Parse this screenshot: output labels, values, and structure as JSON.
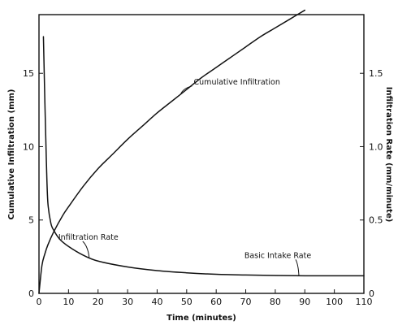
{
  "chart_data": {
    "type": "line",
    "title": "",
    "xlabel": "Time (minutes)",
    "ylabel_left": "Cumulative Infiltration (mm)",
    "ylabel_right": "Infiltration Rate (mm/minute)",
    "xlim": [
      0,
      110
    ],
    "ylim_left": [
      0,
      19
    ],
    "ylim_right": [
      0,
      1.9
    ],
    "x_ticks": [
      0,
      10,
      20,
      30,
      40,
      50,
      60,
      70,
      80,
      90,
      100,
      110
    ],
    "y_left_ticks": [
      0,
      5,
      10,
      15
    ],
    "y_right_ticks": [
      0,
      0.5,
      1.0,
      1.5
    ],
    "x_tick_labels": [
      "0",
      "10",
      "20",
      "30",
      "40",
      "50",
      "60",
      "70",
      "80",
      "90",
      "100",
      "110"
    ],
    "y_left_tick_labels": [
      "0",
      "5",
      "10",
      "15"
    ],
    "y_right_tick_labels": [
      "0",
      "0.5",
      "1.0",
      "1.5"
    ],
    "grid": false,
    "legend": "none",
    "series": [
      {
        "axis": "left",
        "x": [
          0,
          1,
          2,
          3,
          5,
          8,
          10,
          15,
          20,
          25,
          30,
          35,
          40,
          45,
          50,
          55,
          60,
          65,
          70,
          75,
          80,
          85,
          90
        ],
        "y": [
          0,
          1.9,
          2.7,
          3.3,
          4.2,
          5.3,
          5.9,
          7.3,
          8.5,
          9.5,
          10.5,
          11.4,
          12.3,
          13.1,
          13.9,
          14.7,
          15.4,
          16.1,
          16.8,
          17.5,
          18.1,
          18.7,
          19.3
        ]
      },
      {
        "axis": "right",
        "x": [
          1.5,
          2,
          2.5,
          3,
          4,
          5,
          7,
          10,
          15,
          20,
          30,
          40,
          50,
          60,
          70,
          80,
          90,
          100,
          110
        ],
        "y": [
          1.75,
          1.3,
          0.9,
          0.62,
          0.48,
          0.43,
          0.37,
          0.32,
          0.26,
          0.22,
          0.18,
          0.155,
          0.14,
          0.13,
          0.125,
          0.122,
          0.12,
          0.12,
          0.12
        ]
      }
    ],
    "annotations": [
      {
        "text": "Cumulative Infiltration",
        "target_series": 0,
        "x": 48
      },
      {
        "text": "Infiltration Rate",
        "target_series": 1,
        "x": 17
      },
      {
        "text": "Basic Intake Rate",
        "target_series": 1,
        "x": 88
      }
    ]
  }
}
